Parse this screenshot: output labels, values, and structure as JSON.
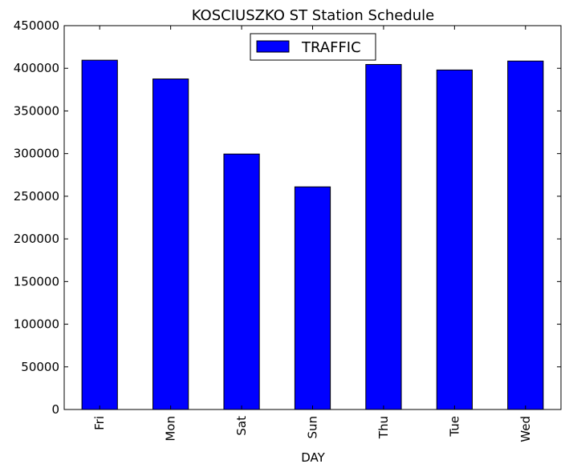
{
  "chart_data": {
    "type": "bar",
    "title": "KOSCIUSZKO ST Station Schedule",
    "xlabel": "DAY",
    "ylabel": "",
    "categories": [
      "Fri",
      "Mon",
      "Sat",
      "Sun",
      "Thu",
      "Tue",
      "Wed"
    ],
    "series": [
      {
        "name": "TRAFFIC",
        "values": [
          409500,
          387500,
          299500,
          261000,
          404500,
          398000,
          408500
        ],
        "color": "#0000ff"
      }
    ],
    "ylim": [
      0,
      450000
    ],
    "yticks": [
      0,
      50000,
      100000,
      150000,
      200000,
      250000,
      300000,
      350000,
      400000,
      450000
    ],
    "ytick_labels": [
      "0",
      "50000",
      "100000",
      "150000",
      "200000",
      "250000",
      "300000",
      "350000",
      "400000",
      "450000"
    ],
    "legend": "upper-center",
    "grid": false
  }
}
